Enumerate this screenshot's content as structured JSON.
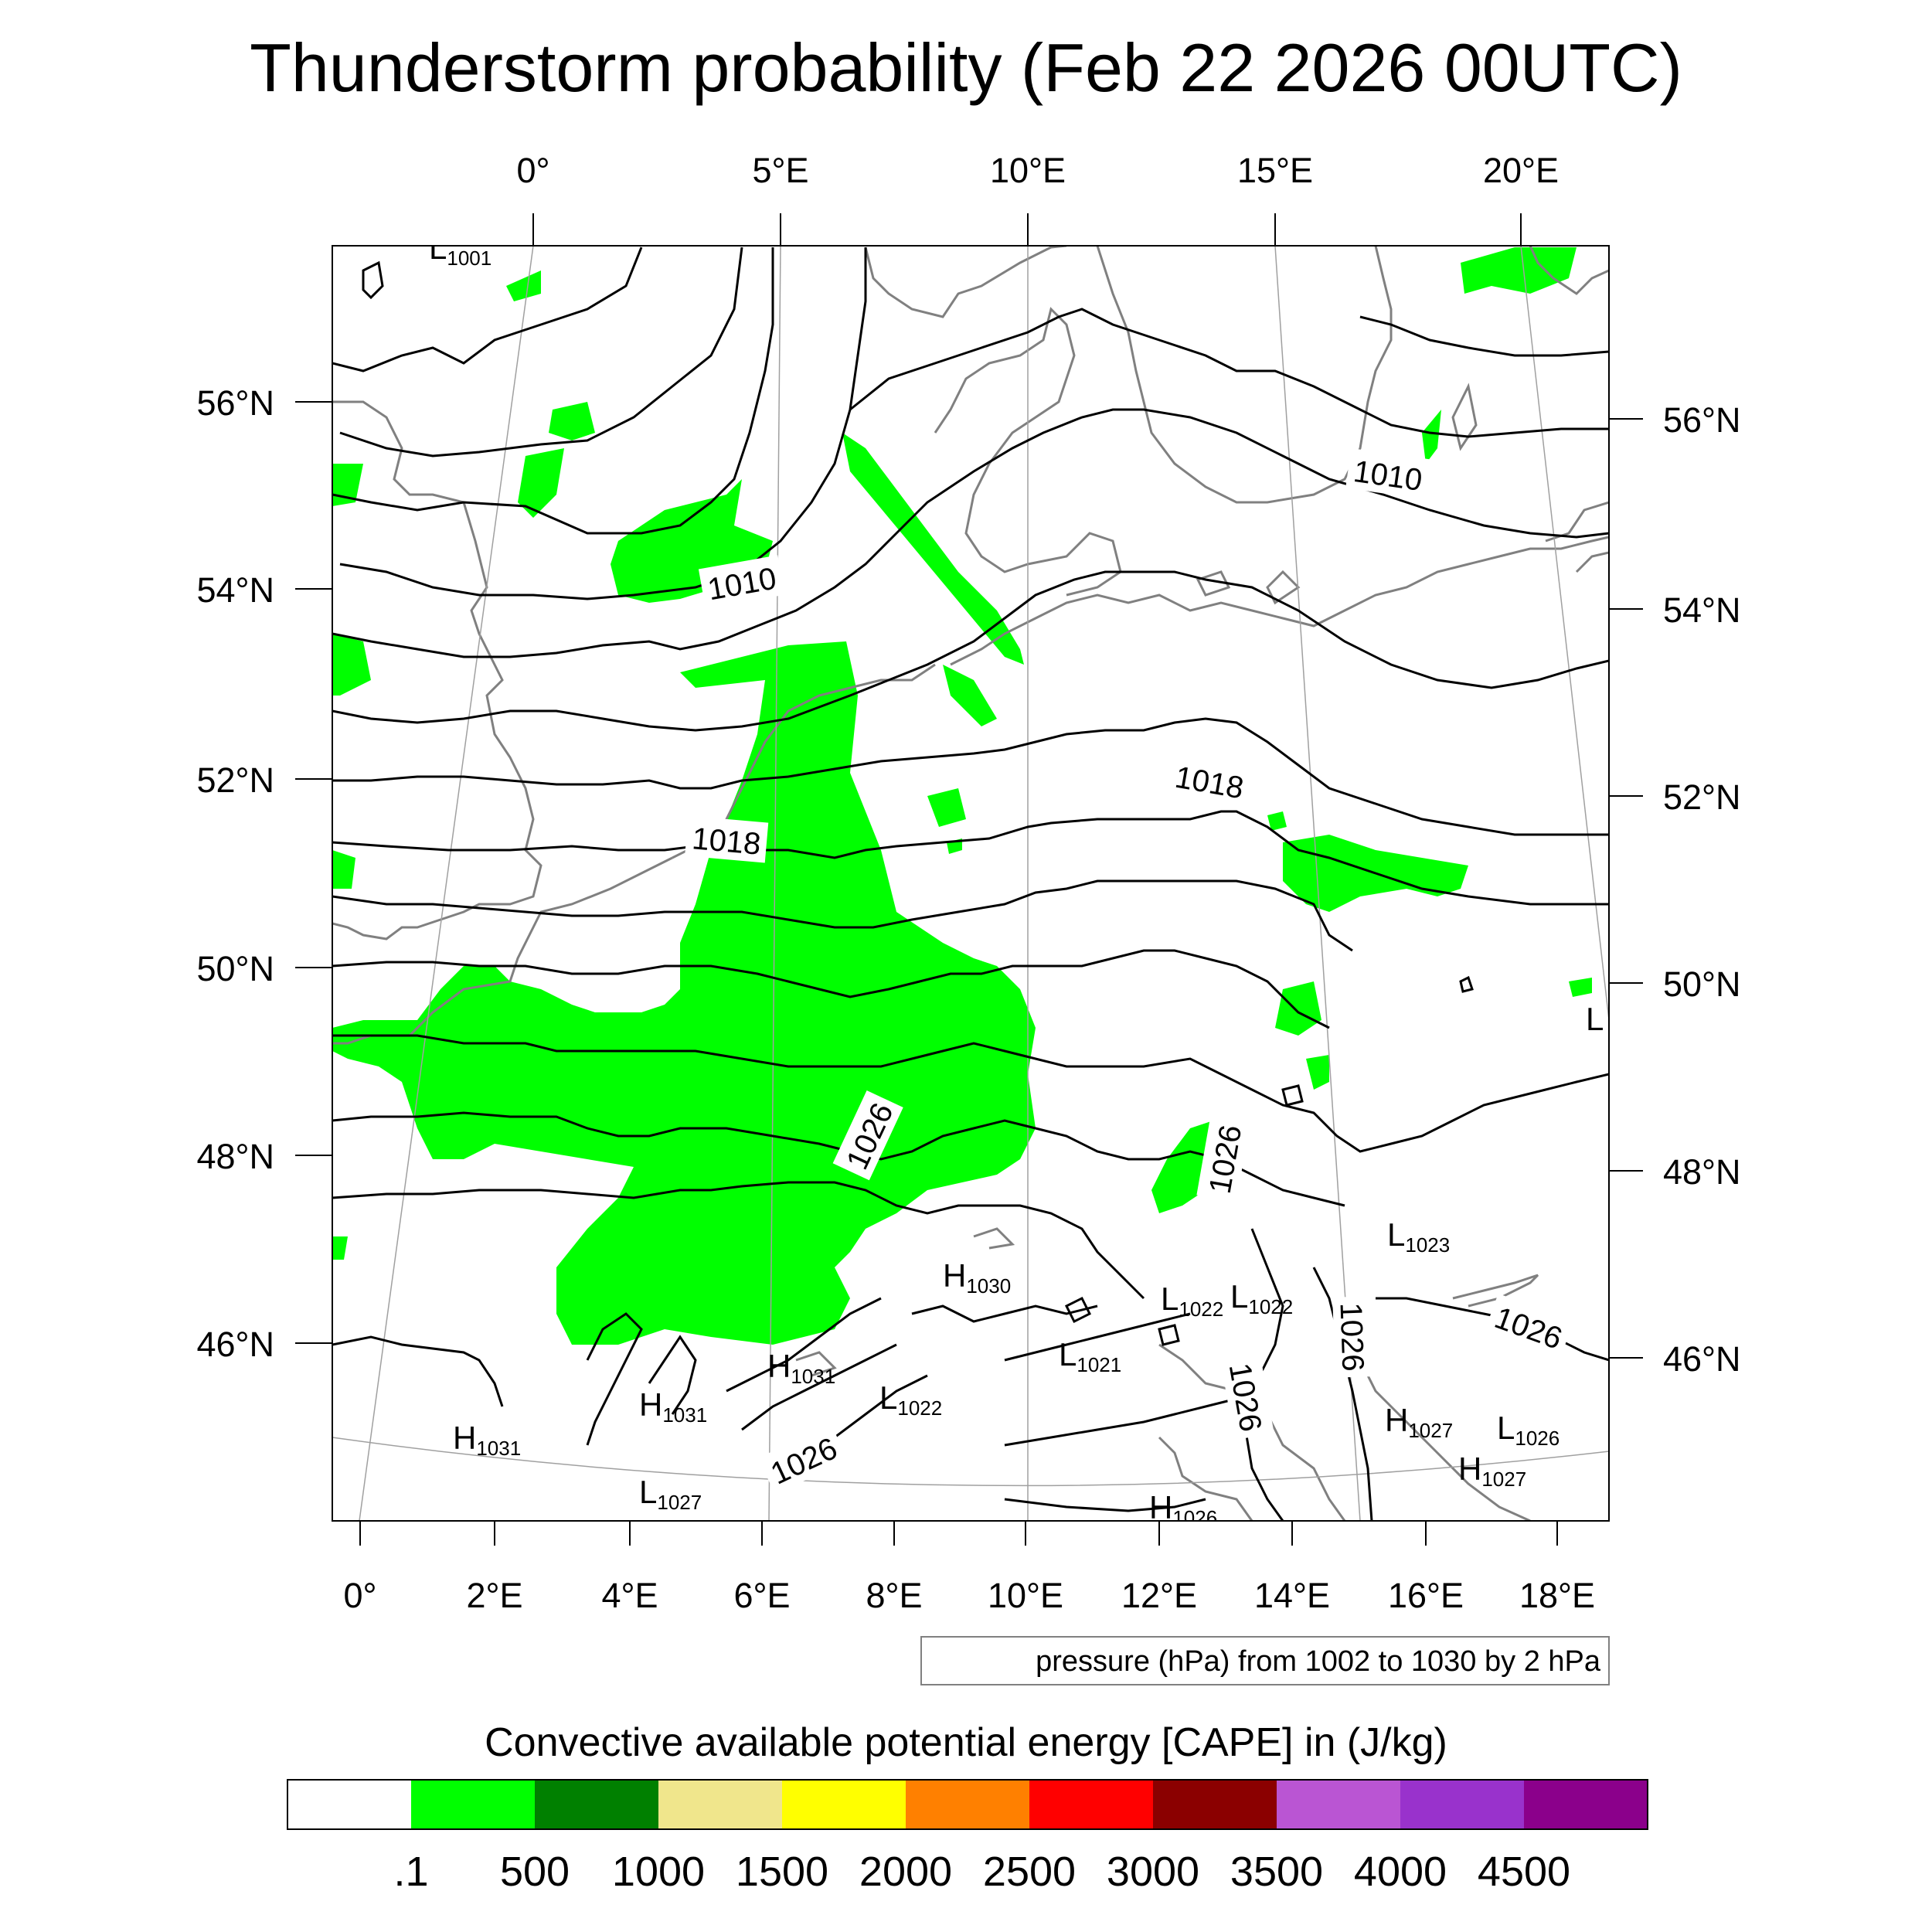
{
  "title": "Thunderstorm probability (Feb 22 2026 00UTC)",
  "top_lon_labels": [
    "0°",
    "5°E",
    "10°E",
    "15°E",
    "20°E"
  ],
  "bottom_lon_labels": [
    "0°",
    "2°E",
    "4°E",
    "6°E",
    "8°E",
    "10°E",
    "12°E",
    "14°E",
    "16°E",
    "18°E"
  ],
  "left_lat_labels": [
    "56°N",
    "54°N",
    "52°N",
    "50°N",
    "48°N",
    "46°N"
  ],
  "right_lat_labels": [
    "56°N",
    "54°N",
    "52°N",
    "50°N",
    "48°N",
    "46°N"
  ],
  "contour_info": "pressure (hPa) from 1002 to 1030 by 2 hPa",
  "contour_labels": [
    "1010",
    "1010",
    "1018",
    "1018",
    "1026",
    "1026",
    "1026",
    "1026",
    "1026",
    "1026"
  ],
  "pressure_centers": [
    {
      "type": "L",
      "value": "1001"
    },
    {
      "type": "H",
      "value": "1030"
    },
    {
      "type": "L",
      "value": "1022"
    },
    {
      "type": "L",
      "value": "1022"
    },
    {
      "type": "L",
      "value": "1023"
    },
    {
      "type": "H",
      "value": "1031"
    },
    {
      "type": "L",
      "value": "1021"
    },
    {
      "type": "H",
      "value": "1031"
    },
    {
      "type": "L",
      "value": "1022"
    },
    {
      "type": "H",
      "value": "1031"
    },
    {
      "type": "L",
      "value": "1027"
    },
    {
      "type": "H",
      "value": "1026"
    },
    {
      "type": "H",
      "value": "1027"
    },
    {
      "type": "L",
      "value": "1026"
    },
    {
      "type": "H",
      "value": "1027"
    },
    {
      "type": "L",
      "value": ""
    }
  ],
  "legend": {
    "title": "Convective available potential energy [CAPE] in (J/kg)",
    "labels": [
      ".1",
      "500",
      "1000",
      "1500",
      "2000",
      "2500",
      "3000",
      "3500",
      "4000",
      "4500"
    ],
    "colors": [
      "#ffffff",
      "#00ff00",
      "#008000",
      "#f0e68c",
      "#ffff00",
      "#ff8000",
      "#ff0000",
      "#8b0000",
      "#ba55d3",
      "#9932cc",
      "#8b008b"
    ]
  },
  "colors": {
    "cape_green": "#00ff00",
    "coast": "#808080",
    "contour": "#000000",
    "grid": "#a0a0a0"
  }
}
